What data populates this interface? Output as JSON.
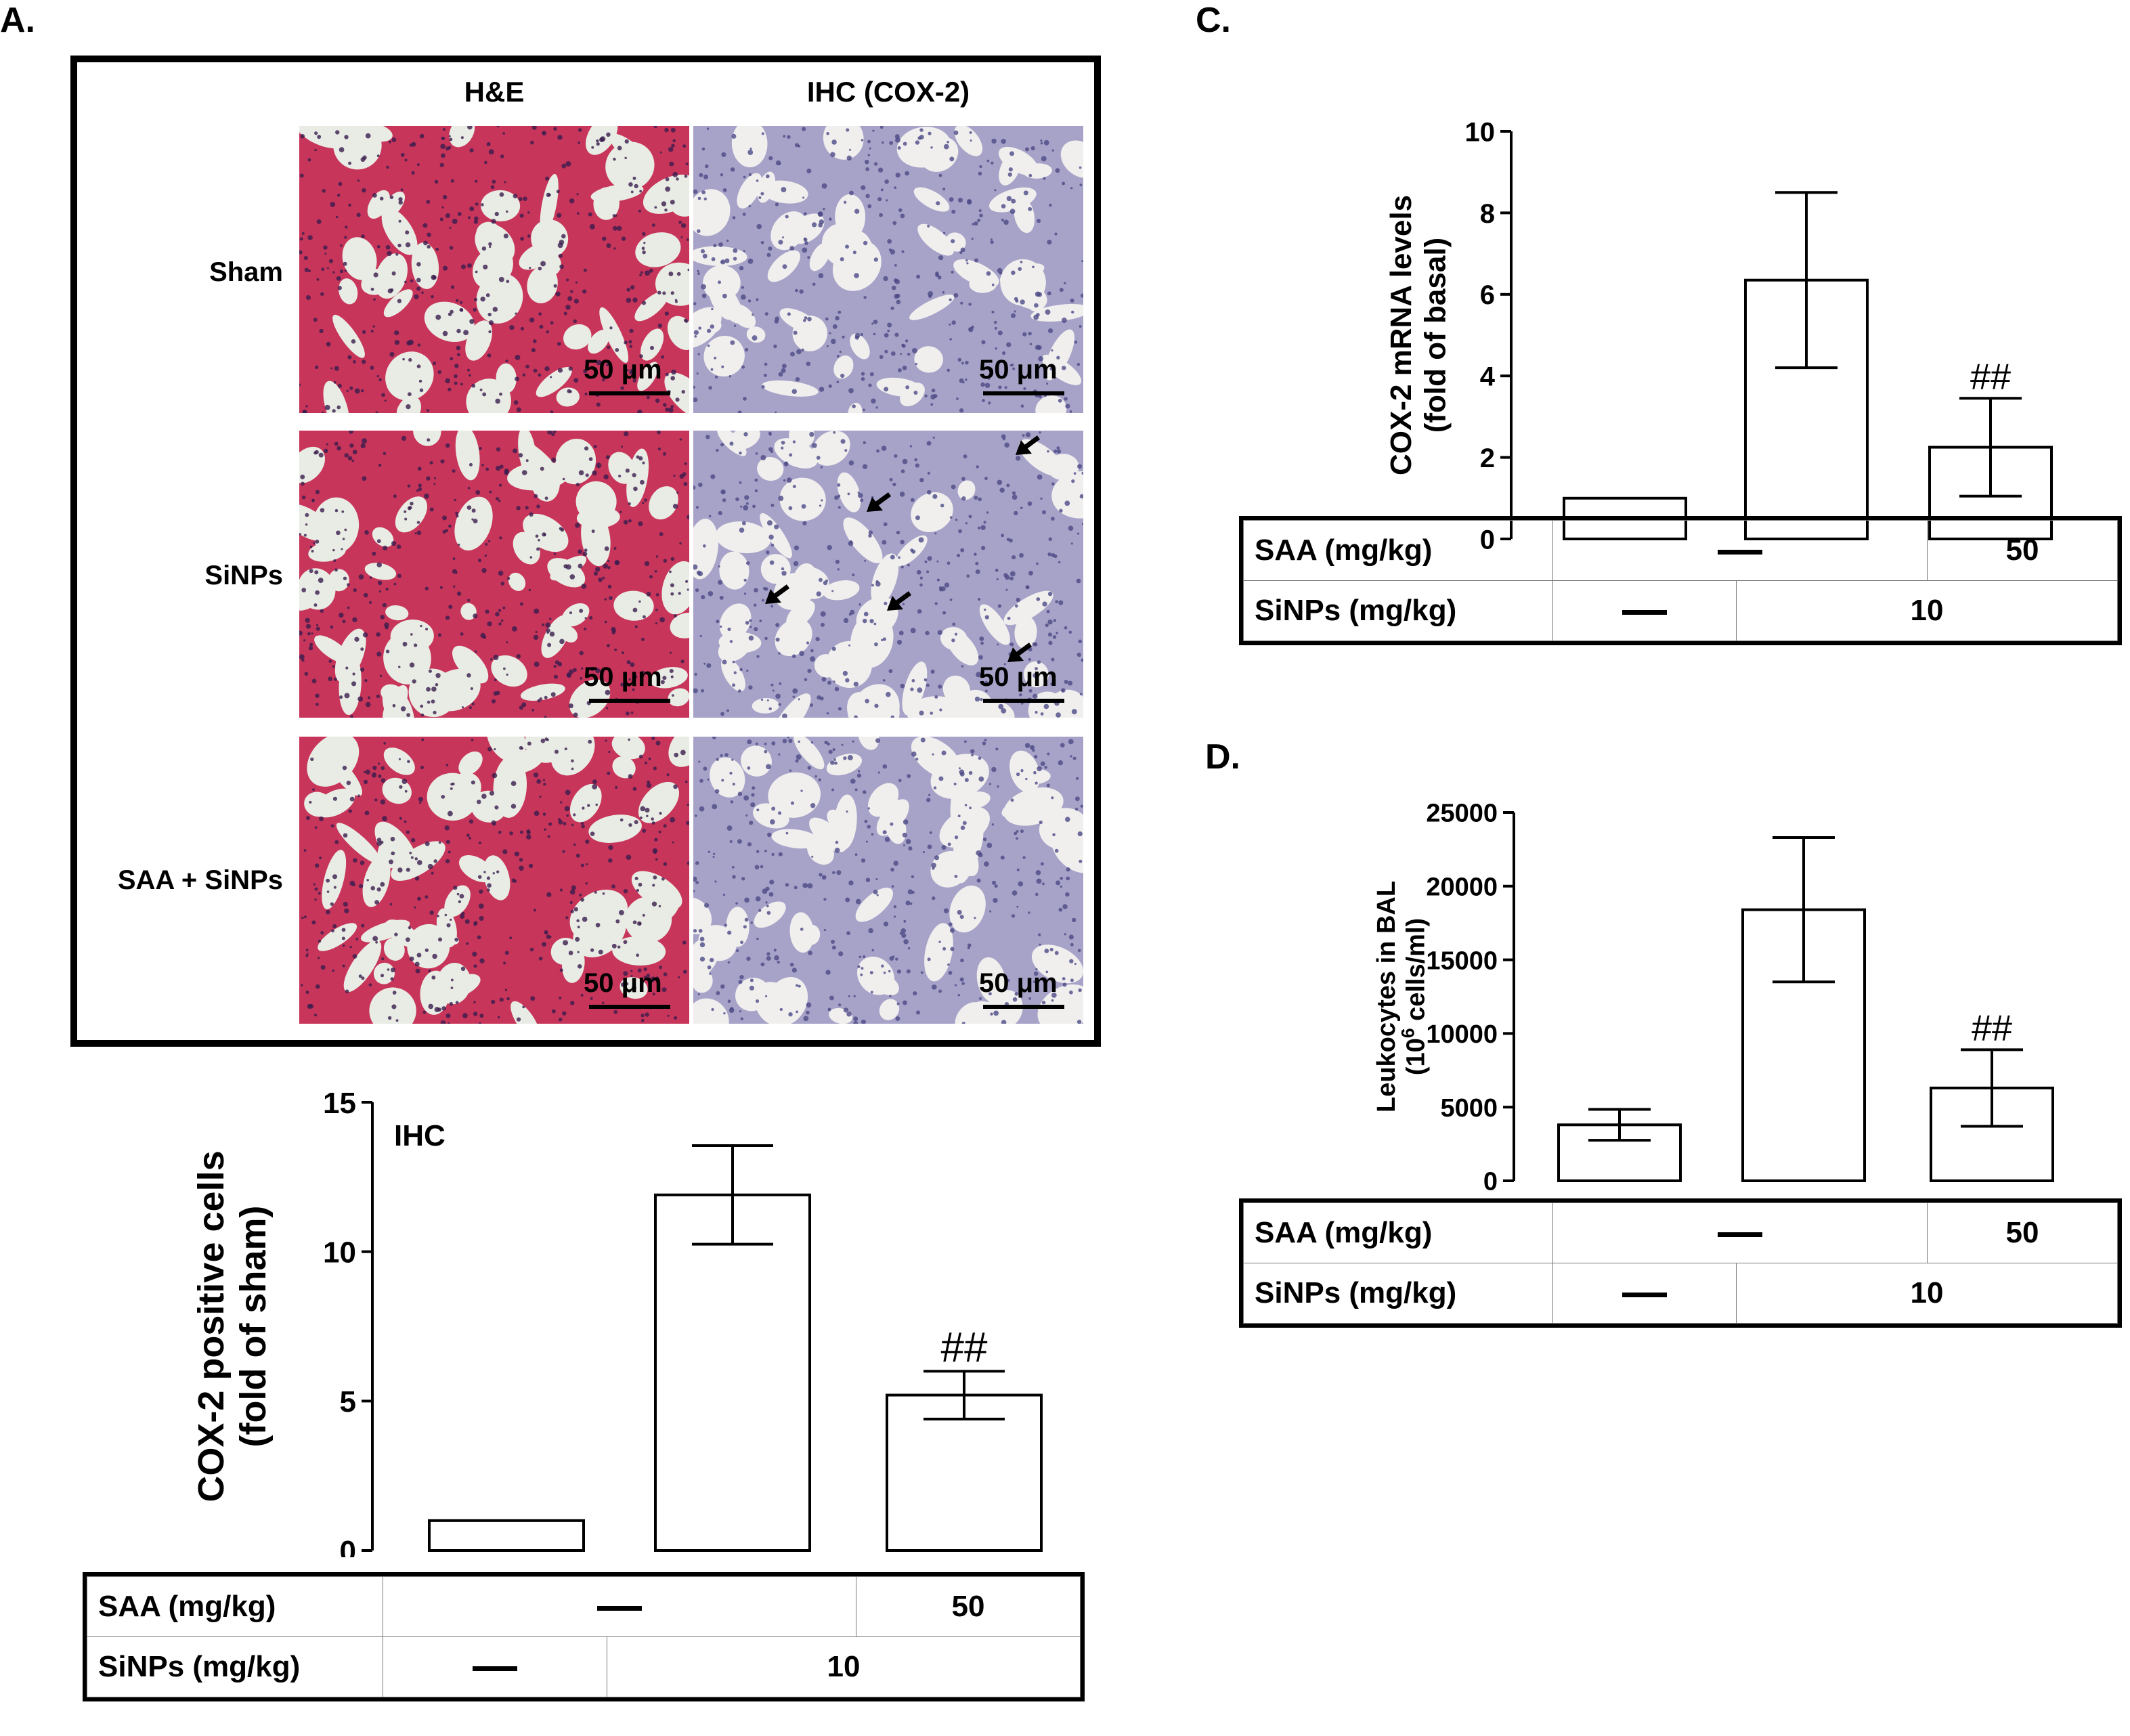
{
  "panels": {
    "a_label": "A.",
    "c_label": "C.",
    "d_label": "D."
  },
  "micrographs": {
    "columns": [
      "H&E",
      "IHC (COX-2)"
    ],
    "rows": [
      "Sham",
      "SiNPs",
      "SAA + SiNPs"
    ],
    "scale_bar": "50 μm",
    "stain_colors": {
      "he_tissue": "#c8355a",
      "he_nuclei": "#3a1d4e",
      "ihc_tissue": "#a7a3c8",
      "background": "#eef0ea"
    }
  },
  "conditions": {
    "saa_label": "SAA (mg/kg)",
    "sinps_label": "SiNPs (mg/kg)",
    "saa_value": "50",
    "sinps_value": "10"
  },
  "chart_data": [
    {
      "type": "bar",
      "panel": "A",
      "annotation": "IHC",
      "ylabel": "COX-2 positive cells (fold of sham)",
      "ylabel_lines": [
        "COX-2 positive cells",
        "(fold of sham)"
      ],
      "ylim": [
        0,
        15
      ],
      "yticks": [
        0,
        5,
        10,
        15
      ],
      "values": [
        1.0,
        11.9,
        5.2
      ],
      "errors": [
        0,
        1.65,
        0.8
      ],
      "markers": [
        "",
        "",
        "##"
      ]
    },
    {
      "type": "bar",
      "panel": "C",
      "ylabel": "COX-2 mRNA levels (fold of basal)",
      "ylabel_lines": [
        "COX-2 mRNA levels",
        "(fold of basal)"
      ],
      "ylim": [
        0,
        10
      ],
      "yticks": [
        0,
        2,
        4,
        6,
        8,
        10
      ],
      "values": [
        1.0,
        6.35,
        2.25
      ],
      "errors": [
        0,
        2.15,
        1.2
      ],
      "markers": [
        "",
        "",
        "##"
      ]
    },
    {
      "type": "bar",
      "panel": "D",
      "ylabel": "Leukocytes in BAL (10^6 cells/ml)",
      "ylabel_lines": [
        "Leukocytes in BAL",
        "(10",
        "6",
        " cells/ml)"
      ],
      "ylim": [
        0,
        25000
      ],
      "yticks": [
        0,
        5000,
        10000,
        15000,
        20000,
        25000
      ],
      "values": [
        3800,
        18400,
        6300
      ],
      "errors": [
        1050,
        4900,
        2600
      ],
      "markers": [
        "",
        "",
        "##"
      ]
    }
  ]
}
